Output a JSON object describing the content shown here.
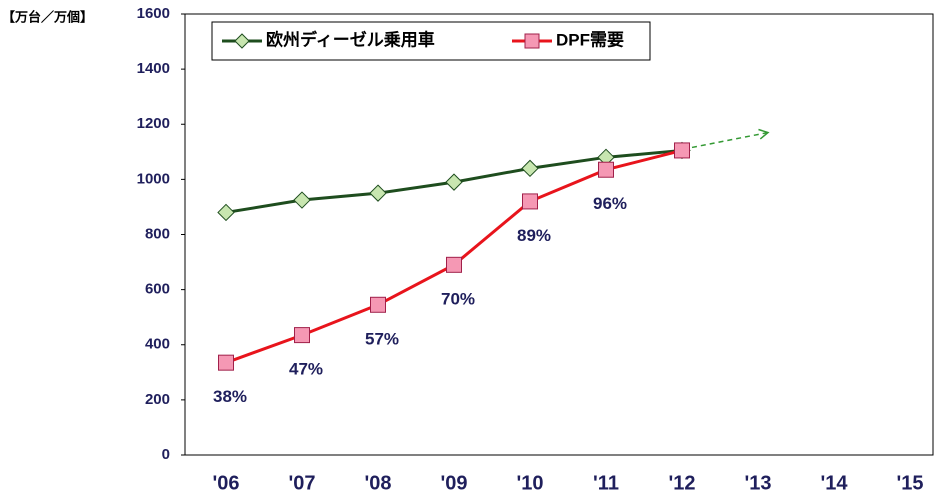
{
  "chart_data": {
    "type": "line",
    "y_label": "【万台／万個】",
    "categories": [
      "'06",
      "'07",
      "'08",
      "'09",
      "'10",
      "'11",
      "'12",
      "'13",
      "'14",
      "'15"
    ],
    "series": [
      {
        "name": "欧州ディーゼル乗用車",
        "color": "#1e4d1e",
        "marker": "diamond",
        "marker_color": "#c8e6b0",
        "values": [
          880,
          925,
          950,
          990,
          1040,
          1080,
          1105,
          null,
          null,
          null
        ]
      },
      {
        "name": "DPF需要",
        "color": "#e8141c",
        "marker": "square",
        "marker_color": "#f598b4",
        "values": [
          335,
          435,
          545,
          690,
          920,
          1035,
          1105,
          null,
          null,
          null
        ]
      }
    ],
    "annotations": [
      "38%",
      "47%",
      "57%",
      "70%",
      "89%",
      "96%"
    ],
    "projection": {
      "x": "'13",
      "y": 1170,
      "color": "#339933"
    },
    "ylim": [
      0,
      1600
    ],
    "yticks": [
      0,
      200,
      400,
      600,
      800,
      1000,
      1200,
      1400,
      1600
    ],
    "grid": false
  }
}
